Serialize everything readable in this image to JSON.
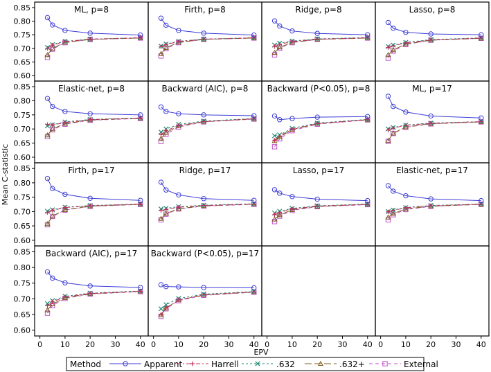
{
  "chart_data": {
    "type": "line",
    "ylabel": "Mean C-statistic",
    "xlabel": "EPV",
    "x_ticks": [
      0,
      10,
      20,
      30,
      40
    ],
    "y_ticks": [
      0.6,
      0.65,
      0.7,
      0.75,
      0.8,
      0.85
    ],
    "y_tick_labels": [
      "0.60",
      "0.65",
      "0.70",
      "0.75",
      "0.80",
      "0.85"
    ],
    "xlim": [
      -1,
      42
    ],
    "ylim": [
      0.59,
      0.86
    ],
    "legend_title": "Method",
    "series_meta": [
      {
        "name": "Apparent",
        "color": "#3b3bd6",
        "marker": "circle",
        "dash": ""
      },
      {
        "name": "Harrell",
        "color": "#c0305a",
        "marker": "plus",
        "dash": "6,3,2,3"
      },
      {
        "name": ".632",
        "color": "#1e8a73",
        "marker": "x",
        "dash": "3,3"
      },
      {
        "name": ".632+",
        "color": "#7a5c1e",
        "marker": "triangle",
        "dash": "10,4"
      },
      {
        "name": "External",
        "color": "#c050c8",
        "marker": "square",
        "dash": "5,4"
      }
    ],
    "panels": [
      {
        "title": "ML, p=8",
        "x": [
          3,
          5,
          10,
          20,
          40
        ],
        "series": [
          {
            "name": "Apparent",
            "values": [
              0.813,
              0.786,
              0.766,
              0.756,
              0.749
            ]
          },
          {
            "name": "Harrell",
            "values": [
              0.7,
              0.712,
              0.725,
              0.734,
              0.739
            ]
          },
          {
            "name": ".632",
            "values": [
              0.703,
              0.714,
              0.726,
              0.734,
              0.739
            ]
          },
          {
            "name": ".632+",
            "values": [
              0.676,
              0.7,
              0.722,
              0.733,
              0.738
            ]
          },
          {
            "name": "External",
            "values": [
              0.667,
              0.697,
              0.721,
              0.733,
              0.738
            ]
          }
        ]
      },
      {
        "title": "Firth, p=8",
        "x": [
          3,
          5,
          10,
          20,
          40
        ],
        "series": [
          {
            "name": "Apparent",
            "values": [
              0.811,
              0.785,
              0.766,
              0.756,
              0.749
            ]
          },
          {
            "name": "Harrell",
            "values": [
              0.706,
              0.714,
              0.725,
              0.734,
              0.739
            ]
          },
          {
            "name": ".632",
            "values": [
              0.708,
              0.716,
              0.726,
              0.734,
              0.739
            ]
          },
          {
            "name": ".632+",
            "values": [
              0.68,
              0.702,
              0.722,
              0.733,
              0.738
            ]
          },
          {
            "name": "External",
            "values": [
              0.672,
              0.699,
              0.721,
              0.733,
              0.738
            ]
          }
        ]
      },
      {
        "title": "Ridge, p=8",
        "x": [
          3,
          5,
          10,
          20,
          40
        ],
        "series": [
          {
            "name": "Apparent",
            "values": [
              0.801,
              0.782,
              0.764,
              0.755,
              0.75
            ]
          },
          {
            "name": "Harrell",
            "values": [
              0.707,
              0.715,
              0.725,
              0.734,
              0.739
            ]
          },
          {
            "name": ".632",
            "values": [
              0.712,
              0.719,
              0.727,
              0.735,
              0.74
            ]
          },
          {
            "name": ".632+",
            "values": [
              0.684,
              0.704,
              0.722,
              0.733,
              0.738
            ]
          },
          {
            "name": "External",
            "values": [
              0.676,
              0.701,
              0.721,
              0.733,
              0.738
            ]
          }
        ]
      },
      {
        "title": "Lasso, p=8",
        "x": [
          3,
          5,
          10,
          20,
          40
        ],
        "series": [
          {
            "name": "Apparent",
            "values": [
              0.795,
              0.774,
              0.759,
              0.753,
              0.75
            ]
          },
          {
            "name": "Harrell",
            "values": [
              0.703,
              0.709,
              0.72,
              0.731,
              0.738
            ]
          },
          {
            "name": ".632",
            "values": [
              0.707,
              0.712,
              0.722,
              0.732,
              0.739
            ]
          },
          {
            "name": ".632+",
            "values": [
              0.676,
              0.694,
              0.716,
              0.73,
              0.737
            ]
          },
          {
            "name": "External",
            "values": [
              0.664,
              0.69,
              0.714,
              0.73,
              0.737
            ]
          }
        ]
      },
      {
        "title": "Elastic-net, p=8",
        "x": [
          3,
          5,
          10,
          20,
          40
        ],
        "series": [
          {
            "name": "Apparent",
            "values": [
              0.808,
              0.78,
              0.762,
              0.754,
              0.75
            ]
          },
          {
            "name": "Harrell",
            "values": [
              0.716,
              0.714,
              0.723,
              0.733,
              0.739
            ]
          },
          {
            "name": ".632",
            "values": [
              0.711,
              0.715,
              0.725,
              0.734,
              0.739
            ]
          },
          {
            "name": ".632+",
            "values": [
              0.678,
              0.7,
              0.719,
              0.732,
              0.738
            ]
          },
          {
            "name": "External",
            "values": [
              0.673,
              0.697,
              0.717,
              0.731,
              0.737
            ]
          }
        ]
      },
      {
        "title": "Backward (AIC), p=8",
        "x": [
          3,
          5,
          10,
          20,
          40
        ],
        "series": [
          {
            "name": "Apparent",
            "values": [
              0.778,
              0.762,
              0.754,
              0.75,
              0.747
            ]
          },
          {
            "name": "Harrell",
            "values": [
              0.68,
              0.694,
              0.712,
              0.726,
              0.736
            ]
          },
          {
            "name": ".632",
            "values": [
              0.689,
              0.7,
              0.716,
              0.728,
              0.737
            ]
          },
          {
            "name": ".632+",
            "values": [
              0.666,
              0.687,
              0.71,
              0.726,
              0.736
            ]
          },
          {
            "name": "External",
            "values": [
              0.656,
              0.681,
              0.707,
              0.725,
              0.735
            ]
          }
        ]
      },
      {
        "title": "Backward (P<0.05), p=8",
        "x": [
          3,
          5,
          10,
          20,
          40
        ],
        "series": [
          {
            "name": "Apparent",
            "values": [
              0.746,
              0.733,
              0.737,
              0.742,
              0.744
            ]
          },
          {
            "name": "Harrell",
            "values": [
              0.66,
              0.675,
              0.699,
              0.719,
              0.733
            ]
          },
          {
            "name": ".632",
            "values": [
              0.676,
              0.679,
              0.702,
              0.721,
              0.734
            ]
          },
          {
            "name": ".632+",
            "values": [
              0.658,
              0.671,
              0.698,
              0.719,
              0.733
            ]
          },
          {
            "name": "External",
            "values": [
              0.637,
              0.665,
              0.694,
              0.717,
              0.732
            ]
          }
        ]
      },
      {
        "title": "ML, p=17",
        "x": [
          3,
          5,
          10,
          20,
          40
        ],
        "series": [
          {
            "name": "Apparent",
            "values": [
              0.816,
              0.78,
              0.76,
              0.746,
              0.739
            ]
          },
          {
            "name": "Harrell",
            "values": [
              0.696,
              0.703,
              0.713,
              0.72,
              0.726
            ]
          },
          {
            "name": ".632",
            "values": [
              0.7,
              0.705,
              0.714,
              0.721,
              0.726
            ]
          },
          {
            "name": ".632+",
            "values": [
              0.659,
              0.685,
              0.707,
              0.719,
              0.725
            ]
          },
          {
            "name": "External",
            "values": [
              0.656,
              0.684,
              0.706,
              0.718,
              0.725
            ]
          }
        ]
      },
      {
        "title": "Firth, p=17",
        "x": [
          3,
          5,
          10,
          20,
          40
        ],
        "series": [
          {
            "name": "Apparent",
            "values": [
              0.815,
              0.78,
              0.76,
              0.746,
              0.739
            ]
          },
          {
            "name": "Harrell",
            "values": [
              0.697,
              0.704,
              0.714,
              0.72,
              0.726
            ]
          },
          {
            "name": ".632",
            "values": [
              0.701,
              0.706,
              0.715,
              0.721,
              0.726
            ]
          },
          {
            "name": ".632+",
            "values": [
              0.657,
              0.684,
              0.706,
              0.719,
              0.725
            ]
          },
          {
            "name": "External",
            "values": [
              0.654,
              0.683,
              0.705,
              0.718,
              0.725
            ]
          }
        ]
      },
      {
        "title": "Ridge, p=17",
        "x": [
          3,
          5,
          10,
          20,
          40
        ],
        "series": [
          {
            "name": "Apparent",
            "values": [
              0.802,
              0.775,
              0.758,
              0.745,
              0.739
            ]
          },
          {
            "name": "Harrell",
            "values": [
              0.704,
              0.707,
              0.715,
              0.721,
              0.726
            ]
          },
          {
            "name": ".632",
            "values": [
              0.709,
              0.711,
              0.717,
              0.722,
              0.727
            ]
          },
          {
            "name": ".632+",
            "values": [
              0.675,
              0.693,
              0.71,
              0.72,
              0.726
            ]
          },
          {
            "name": "External",
            "values": [
              0.671,
              0.691,
              0.709,
              0.719,
              0.725
            ]
          }
        ]
      },
      {
        "title": "Lasso, p=17",
        "x": [
          3,
          5,
          10,
          20,
          40
        ],
        "series": [
          {
            "name": "Apparent",
            "values": [
              0.776,
              0.764,
              0.752,
              0.743,
              0.738
            ]
          },
          {
            "name": "Harrell",
            "values": [
              0.689,
              0.697,
              0.709,
              0.719,
              0.725
            ]
          },
          {
            "name": ".632",
            "values": [
              0.695,
              0.701,
              0.711,
              0.72,
              0.726
            ]
          },
          {
            "name": ".632+",
            "values": [
              0.673,
              0.688,
              0.706,
              0.718,
              0.725
            ]
          },
          {
            "name": "External",
            "values": [
              0.665,
              0.684,
              0.704,
              0.717,
              0.724
            ]
          }
        ]
      },
      {
        "title": "Elastic-net, p=17",
        "x": [
          3,
          5,
          10,
          20,
          40
        ],
        "series": [
          {
            "name": "Apparent",
            "values": [
              0.79,
              0.771,
              0.755,
              0.744,
              0.738
            ]
          },
          {
            "name": "Harrell",
            "values": [
              0.699,
              0.704,
              0.713,
              0.72,
              0.726
            ]
          },
          {
            "name": ".632",
            "values": [
              0.7,
              0.705,
              0.714,
              0.721,
              0.726
            ]
          },
          {
            "name": ".632+",
            "values": [
              0.68,
              0.693,
              0.709,
              0.719,
              0.725
            ]
          },
          {
            "name": "External",
            "values": [
              0.671,
              0.689,
              0.707,
              0.718,
              0.725
            ]
          }
        ]
      },
      {
        "title": "Backward (AIC), p=17",
        "x": [
          3,
          5,
          10,
          20,
          40
        ],
        "series": [
          {
            "name": "Apparent",
            "values": [
              0.786,
              0.766,
              0.751,
              0.741,
              0.736
            ]
          },
          {
            "name": "Harrell",
            "values": [
              0.678,
              0.69,
              0.706,
              0.717,
              0.724
            ]
          },
          {
            "name": ".632",
            "values": [
              0.685,
              0.694,
              0.708,
              0.718,
              0.725
            ]
          },
          {
            "name": ".632+",
            "values": [
              0.664,
              0.683,
              0.703,
              0.716,
              0.724
            ]
          },
          {
            "name": "External",
            "values": [
              0.654,
              0.678,
              0.701,
              0.715,
              0.723
            ]
          }
        ]
      },
      {
        "title": "Backward (P<0.05), p=17",
        "x": [
          3,
          5,
          10,
          20,
          40
        ],
        "series": [
          {
            "name": "Apparent",
            "values": [
              0.745,
              0.739,
              0.738,
              0.736,
              0.735
            ]
          },
          {
            "name": "Harrell",
            "values": [
              0.65,
              0.671,
              0.696,
              0.713,
              0.722
            ]
          },
          {
            "name": ".632",
            "values": [
              0.668,
              0.681,
              0.701,
              0.715,
              0.723
            ]
          },
          {
            "name": ".632+",
            "values": [
              0.648,
              0.67,
              0.696,
              0.712,
              0.722
            ]
          },
          {
            "name": "External",
            "values": [
              0.644,
              0.668,
              0.694,
              0.711,
              0.721
            ]
          }
        ]
      }
    ]
  }
}
